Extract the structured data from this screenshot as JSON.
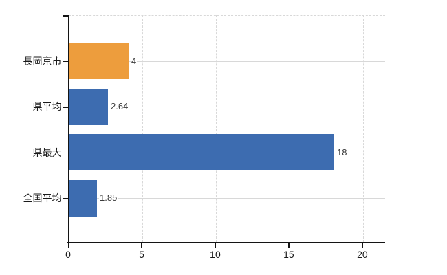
{
  "chart_data": {
    "type": "bar",
    "orientation": "horizontal",
    "title": "",
    "xlabel": "",
    "ylabel": "",
    "categories": [
      "長岡京市",
      "県平均",
      "県最大",
      "全国平均"
    ],
    "values": [
      4,
      2.64,
      18,
      1.85
    ],
    "value_labels": [
      "4",
      "2.64",
      "18",
      "1.85"
    ],
    "bar_colors": [
      "#ed9d3d",
      "#3d6cb0",
      "#3d6cb0",
      "#3d6cb0"
    ],
    "xlim": [
      0,
      21.5
    ],
    "x_ticks": [
      0,
      5,
      10,
      15,
      20
    ],
    "x_tick_labels": [
      "0",
      "5",
      "10",
      "15",
      "20"
    ],
    "grid": true,
    "legend": false
  },
  "colors": {
    "background": "#ffffff",
    "axis": "#141414",
    "gridline": "#d8d8d8",
    "value_label": "#3a3a3a",
    "tick_label": "#1a1a1a",
    "orange_bar": "#ed9d3d",
    "blue_bar": "#3d6cb0"
  }
}
